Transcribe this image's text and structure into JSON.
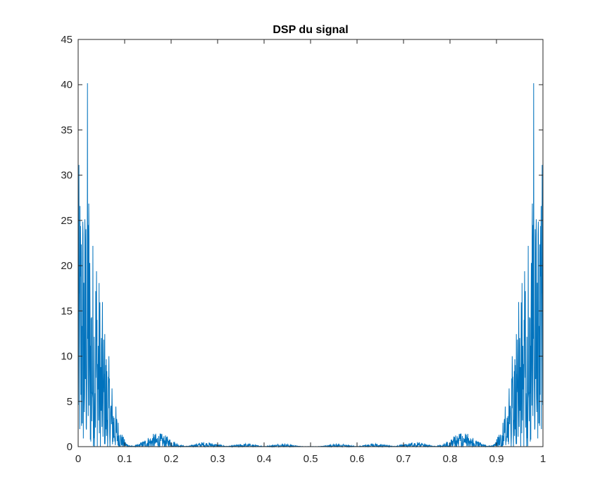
{
  "chart_data": {
    "type": "line",
    "title": "DSP du signal",
    "xlabel": "",
    "ylabel": "",
    "xlim": [
      0,
      1
    ],
    "ylim": [
      0,
      45
    ],
    "xticks": [
      0,
      0.1,
      0.2,
      0.3,
      0.4,
      0.5,
      0.6,
      0.7,
      0.8,
      0.9,
      1
    ],
    "xtick_labels": [
      "0",
      "0.1",
      "0.2",
      "0.3",
      "0.4",
      "0.5",
      "0.6",
      "0.7",
      "0.8",
      "0.9",
      "1"
    ],
    "yticks": [
      0,
      5,
      10,
      15,
      20,
      25,
      30,
      35,
      40,
      45
    ],
    "ytick_labels": [
      "0",
      "5",
      "10",
      "15",
      "20",
      "25",
      "30",
      "35",
      "40",
      "45"
    ],
    "grid": false,
    "legend": "none",
    "series_color": "#0072BD",
    "symmetric_about": 0.5,
    "spectrum_envelope": {
      "x": [
        0.0,
        0.005,
        0.01,
        0.015,
        0.02,
        0.025,
        0.03,
        0.035,
        0.04,
        0.045,
        0.05,
        0.055,
        0.06,
        0.065,
        0.07,
        0.075,
        0.08,
        0.085,
        0.09,
        0.095,
        0.1,
        0.105,
        0.11,
        0.115,
        0.12,
        0.13,
        0.14,
        0.15,
        0.16,
        0.17,
        0.18,
        0.19,
        0.2,
        0.21,
        0.22,
        0.23,
        0.24,
        0.25,
        0.26,
        0.27,
        0.28,
        0.29,
        0.3,
        0.31,
        0.32,
        0.33,
        0.34,
        0.35,
        0.36,
        0.37,
        0.38,
        0.39,
        0.4,
        0.41,
        0.42,
        0.43,
        0.44,
        0.45,
        0.46,
        0.47,
        0.48,
        0.49,
        0.5
      ],
      "y": [
        30.5,
        33.0,
        31.0,
        28.5,
        42.0,
        26.5,
        25.0,
        23.0,
        25.5,
        19.5,
        17.0,
        15.0,
        12.5,
        10.5,
        8.5,
        6.5,
        5.0,
        3.5,
        2.2,
        1.4,
        0.8,
        0.4,
        0.2,
        0.1,
        0.05,
        0.3,
        0.7,
        1.1,
        1.4,
        1.55,
        1.45,
        1.2,
        0.9,
        0.5,
        0.2,
        0.05,
        0.1,
        0.3,
        0.45,
        0.55,
        0.5,
        0.4,
        0.3,
        0.15,
        0.05,
        0.1,
        0.2,
        0.3,
        0.35,
        0.3,
        0.2,
        0.1,
        0.05,
        0.1,
        0.2,
        0.3,
        0.35,
        0.3,
        0.2,
        0.1,
        0.03,
        0.02,
        0.02
      ]
    }
  }
}
